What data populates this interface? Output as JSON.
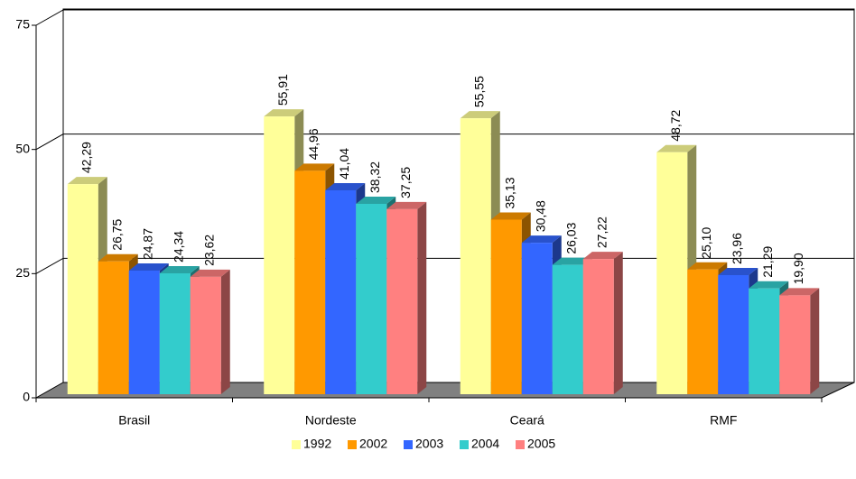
{
  "chart_data": {
    "type": "bar",
    "categories": [
      "Brasil",
      "Nordeste",
      "Ceará",
      "RMF"
    ],
    "series": [
      {
        "name": "1992",
        "color": "#ffff99",
        "values": [
          42.29,
          55.91,
          55.55,
          48.72
        ],
        "value_labels": [
          "42,29",
          "55,91",
          "55,55",
          "48,72"
        ]
      },
      {
        "name": "2002",
        "color": "#ff9900",
        "values": [
          26.75,
          44.96,
          35.13,
          25.1
        ],
        "value_labels": [
          "26,75",
          "44,96",
          "35,13",
          "25,10"
        ]
      },
      {
        "name": "2003",
        "color": "#3366ff",
        "values": [
          24.87,
          41.04,
          30.48,
          23.96
        ],
        "value_labels": [
          "24,87",
          "41,04",
          "30,48",
          "23,96"
        ]
      },
      {
        "name": "2004",
        "color": "#33cccc",
        "values": [
          24.34,
          38.32,
          26.03,
          21.29
        ],
        "value_labels": [
          "24,34",
          "38,32",
          "26,03",
          "21,29"
        ]
      },
      {
        "name": "2005",
        "color": "#ff8080",
        "values": [
          23.62,
          37.25,
          27.22,
          19.9
        ],
        "value_labels": [
          "23,62",
          "37,25",
          "27,22",
          "19,90"
        ]
      }
    ],
    "ylim": [
      0,
      75
    ],
    "yticks": [
      0,
      25,
      50,
      75
    ],
    "grid": true,
    "legend": "bottom"
  }
}
